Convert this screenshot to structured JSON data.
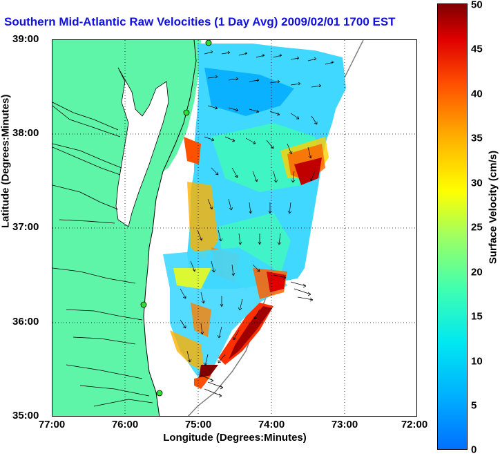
{
  "title": "Southern Mid-Atlantic Raw Velocities (1 Day Avg) 2009/02/01 1700 EST",
  "axes": {
    "xlabel": "Longitude (Degrees:Minutes)",
    "ylabel": "Latitude (Degrees:Minutes)",
    "xticks": [
      "77:00",
      "76:00",
      "75:00",
      "74:00",
      "73:00",
      "72:00"
    ],
    "yticks": [
      "39:00",
      "38:00",
      "37:00",
      "36:00",
      "35:00"
    ],
    "xlim": [
      -77,
      -72
    ],
    "ylim": [
      35,
      39
    ]
  },
  "colorbar": {
    "label": "Surface Velocity (cm/s)",
    "ticks": [
      "50",
      "45",
      "40",
      "35",
      "30",
      "25",
      "20",
      "15",
      "10",
      "5",
      "0"
    ],
    "range": [
      0,
      50
    ],
    "colors": [
      "#0070ff",
      "#00e8f0",
      "#40ffb0",
      "#ffff00",
      "#ff5000",
      "#800000"
    ]
  },
  "map": {
    "land_color": "#5ff5a8",
    "water_color": "#ffffff",
    "arrow_color": "#000000",
    "station_color": "#30e030",
    "grid": "dotted"
  }
}
